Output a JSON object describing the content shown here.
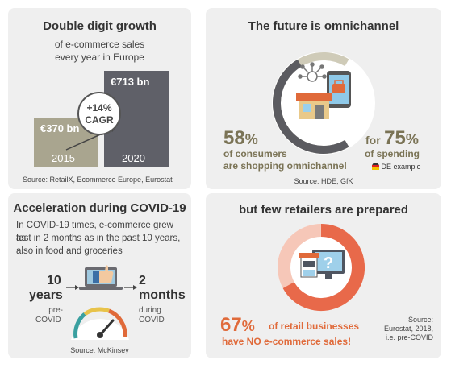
{
  "growth": {
    "title": "Double digit growth",
    "subtitle_line1": "of e-commerce sales",
    "subtitle_line2": "every year in Europe",
    "badge_line1": "+14%",
    "badge_line2": "CAGR",
    "source": "Source: RetailX, Ecommerce Europe, Eurostat",
    "chart_data": {
      "type": "bar",
      "categories": [
        "2015",
        "2020"
      ],
      "values": [
        370,
        713
      ],
      "value_labels": [
        "€370 bn",
        "€713 bn"
      ],
      "annotation": "+14% CAGR",
      "colors": [
        "#a9a58f",
        "#5f6068"
      ]
    }
  },
  "omnichannel": {
    "title": "The future is omnichannel",
    "stat1_value": "58",
    "stat1_unit": "%",
    "stat1_line1": "of consumers",
    "stat1_line2": "are shopping omnichannel",
    "stat2_prefix": "for",
    "stat2_value": "75",
    "stat2_unit": "%",
    "stat2_line": "of spending",
    "flag_label": "DE example",
    "source": "Source: HDE, GfK",
    "ring_fraction": 0.58,
    "icons": [
      "network-icon",
      "store-icon",
      "smartphone-icon",
      "cart-icon"
    ]
  },
  "covid": {
    "title": "Acceleration during COVID-19",
    "text_line1": "In COVID-19 times, e-commerce grew as",
    "text_line2": "fast in 2 months as in the past 10 years,",
    "text_line3": "also in food and groceries",
    "left_value": "10",
    "left_unit": "years",
    "left_note_line1": "pre-",
    "left_note_line2": "COVID",
    "right_value": "2",
    "right_unit": "months",
    "right_note_line1": "during",
    "right_note_line2": "COVID",
    "source": "Source: McKinsey",
    "icons": [
      "laptop-icon",
      "thumbs-up-icon",
      "speedometer-icon"
    ]
  },
  "retailers": {
    "title": "but few retailers are prepared",
    "stat_value": "67",
    "stat_unit": "%",
    "stat_line1": "of retail businesses",
    "stat_line2": "have NO e-commerce sales!",
    "source_line1": "Source:",
    "source_line2": "Eurostat, 2018,",
    "source_line3": "i.e. pre-COVID",
    "ring_fraction": 0.67,
    "colors": {
      "ring": "#e8694a",
      "ring_bg": "#f6c7b8"
    },
    "icons": [
      "storefront-icon",
      "monitor-icon",
      "question-icon"
    ]
  }
}
